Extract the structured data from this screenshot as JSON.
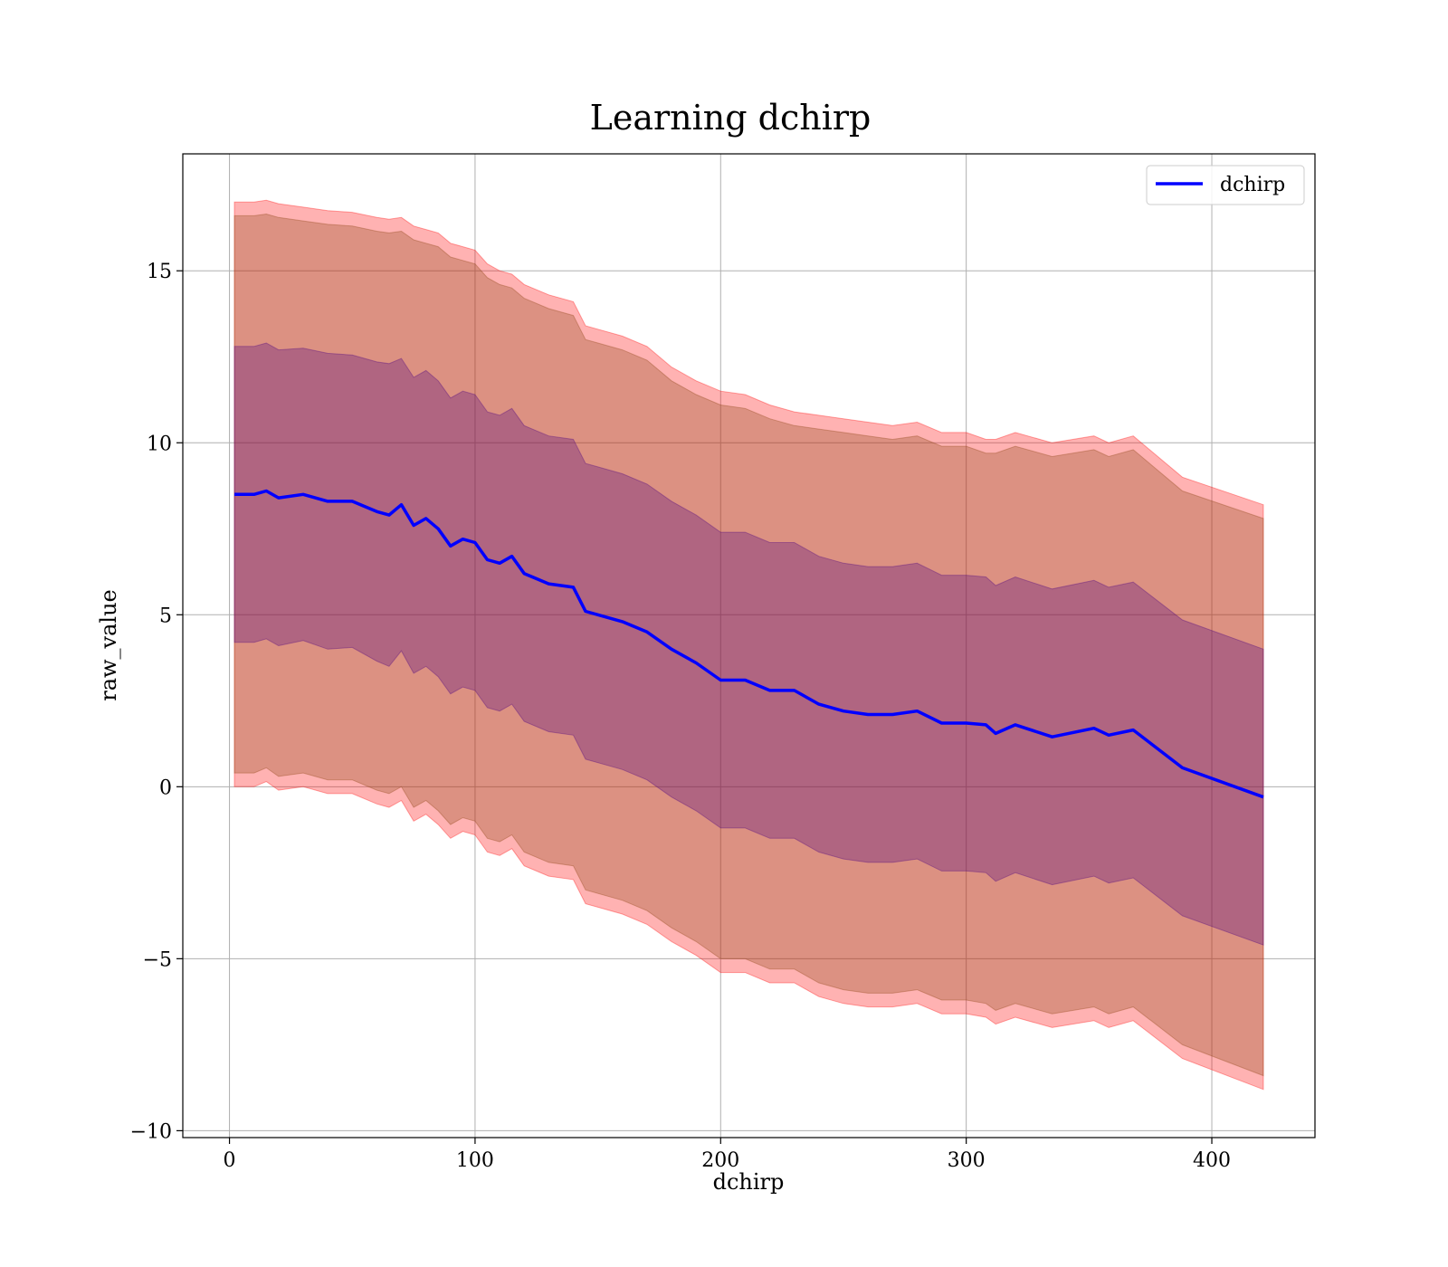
{
  "chart_data": {
    "type": "line",
    "title": "Learning dchirp",
    "xlabel": "dchirp",
    "ylabel": "raw_value",
    "xlim": [
      -19,
      442
    ],
    "ylim": [
      -10.2,
      18.4
    ],
    "xticks": [
      0,
      100,
      200,
      300,
      400
    ],
    "yticks": [
      -10,
      -5,
      0,
      5,
      10,
      15
    ],
    "ytick_labels": [
      "−10",
      "−5",
      "0",
      "5",
      "10",
      "15"
    ],
    "xtick_labels": [
      "0",
      "100",
      "200",
      "300",
      "400"
    ],
    "grid": true,
    "legend": {
      "position": "top-right",
      "entries": [
        "dchirp"
      ]
    },
    "colors": {
      "line": "#0000ff",
      "outer_band": "#ff0000",
      "middle_band": "#8b4513",
      "inner_band": "#4b0082"
    },
    "x": [
      2,
      10,
      15,
      20,
      30,
      40,
      50,
      60,
      65,
      70,
      75,
      80,
      85,
      90,
      95,
      100,
      105,
      110,
      115,
      120,
      130,
      140,
      145,
      150,
      160,
      170,
      180,
      190,
      200,
      210,
      220,
      230,
      240,
      250,
      260,
      270,
      280,
      290,
      300,
      308,
      312,
      320,
      335,
      352,
      358,
      368,
      388,
      421
    ],
    "series": [
      {
        "name": "dchirp",
        "values": [
          8.5,
          8.5,
          8.6,
          8.4,
          8.5,
          8.3,
          8.3,
          8.0,
          7.9,
          8.2,
          7.6,
          7.8,
          7.5,
          7.0,
          7.2,
          7.1,
          6.6,
          6.5,
          6.7,
          6.2,
          5.9,
          5.8,
          5.1,
          5.0,
          4.8,
          4.5,
          4.0,
          3.6,
          3.1,
          3.1,
          2.8,
          2.8,
          2.4,
          2.2,
          2.1,
          2.1,
          2.2,
          1.85,
          1.85,
          1.8,
          1.55,
          1.8,
          1.45,
          1.7,
          1.5,
          1.65,
          0.55,
          -0.3
        ]
      }
    ],
    "bands": [
      {
        "label": "outer",
        "upper": [
          17.0,
          17.0,
          17.05,
          16.95,
          16.85,
          16.75,
          16.7,
          16.55,
          16.5,
          16.55,
          16.3,
          16.2,
          16.1,
          15.8,
          15.7,
          15.6,
          15.2,
          15.0,
          14.9,
          14.6,
          14.3,
          14.1,
          13.4,
          13.3,
          13.1,
          12.8,
          12.2,
          11.8,
          11.5,
          11.4,
          11.1,
          10.9,
          10.8,
          10.7,
          10.6,
          10.5,
          10.6,
          10.3,
          10.3,
          10.1,
          10.1,
          10.3,
          10.0,
          10.2,
          10.0,
          10.2,
          9.0,
          8.2
        ],
        "lower": [
          0.0,
          0.0,
          0.15,
          -0.1,
          0.0,
          -0.2,
          -0.2,
          -0.5,
          -0.6,
          -0.4,
          -1.0,
          -0.8,
          -1.1,
          -1.5,
          -1.3,
          -1.4,
          -1.9,
          -2.0,
          -1.8,
          -2.3,
          -2.6,
          -2.7,
          -3.4,
          -3.5,
          -3.7,
          -4.0,
          -4.5,
          -4.9,
          -5.4,
          -5.4,
          -5.7,
          -5.7,
          -6.1,
          -6.3,
          -6.4,
          -6.4,
          -6.3,
          -6.6,
          -6.6,
          -6.7,
          -6.9,
          -6.7,
          -7.0,
          -6.8,
          -7.0,
          -6.8,
          -7.9,
          -8.8
        ]
      },
      {
        "label": "middle",
        "upper": [
          16.6,
          16.6,
          16.65,
          16.55,
          16.45,
          16.35,
          16.3,
          16.15,
          16.1,
          16.15,
          15.9,
          15.8,
          15.7,
          15.4,
          15.3,
          15.2,
          14.8,
          14.6,
          14.5,
          14.2,
          13.9,
          13.7,
          13.0,
          12.9,
          12.7,
          12.4,
          11.8,
          11.4,
          11.1,
          11.0,
          10.7,
          10.5,
          10.4,
          10.3,
          10.2,
          10.1,
          10.2,
          9.9,
          9.9,
          9.7,
          9.7,
          9.9,
          9.6,
          9.8,
          9.6,
          9.8,
          8.6,
          7.8
        ],
        "lower": [
          0.4,
          0.4,
          0.55,
          0.3,
          0.4,
          0.2,
          0.2,
          -0.1,
          -0.2,
          0.0,
          -0.6,
          -0.4,
          -0.7,
          -1.1,
          -0.9,
          -1.0,
          -1.5,
          -1.6,
          -1.4,
          -1.9,
          -2.2,
          -2.3,
          -3.0,
          -3.1,
          -3.3,
          -3.6,
          -4.1,
          -4.5,
          -5.0,
          -5.0,
          -5.3,
          -5.3,
          -5.7,
          -5.9,
          -6.0,
          -6.0,
          -5.9,
          -6.2,
          -6.2,
          -6.3,
          -6.5,
          -6.3,
          -6.6,
          -6.4,
          -6.6,
          -6.4,
          -7.5,
          -8.4
        ]
      },
      {
        "label": "inner",
        "upper": [
          12.8,
          12.8,
          12.9,
          12.7,
          12.75,
          12.6,
          12.55,
          12.35,
          12.3,
          12.45,
          11.9,
          12.1,
          11.8,
          11.3,
          11.5,
          11.4,
          10.9,
          10.8,
          11.0,
          10.5,
          10.2,
          10.1,
          9.4,
          9.3,
          9.1,
          8.8,
          8.3,
          7.9,
          7.4,
          7.4,
          7.1,
          7.1,
          6.7,
          6.5,
          6.4,
          6.4,
          6.5,
          6.15,
          6.15,
          6.1,
          5.85,
          6.1,
          5.75,
          6.0,
          5.8,
          5.95,
          4.85,
          4.0
        ],
        "lower": [
          4.2,
          4.2,
          4.3,
          4.1,
          4.25,
          4.0,
          4.05,
          3.65,
          3.5,
          3.95,
          3.3,
          3.5,
          3.2,
          2.7,
          2.9,
          2.8,
          2.3,
          2.2,
          2.4,
          1.9,
          1.6,
          1.5,
          0.8,
          0.7,
          0.5,
          0.2,
          -0.3,
          -0.7,
          -1.2,
          -1.2,
          -1.5,
          -1.5,
          -1.9,
          -2.1,
          -2.2,
          -2.2,
          -2.1,
          -2.45,
          -2.45,
          -2.5,
          -2.75,
          -2.5,
          -2.85,
          -2.6,
          -2.8,
          -2.65,
          -3.75,
          -4.6
        ]
      }
    ]
  }
}
